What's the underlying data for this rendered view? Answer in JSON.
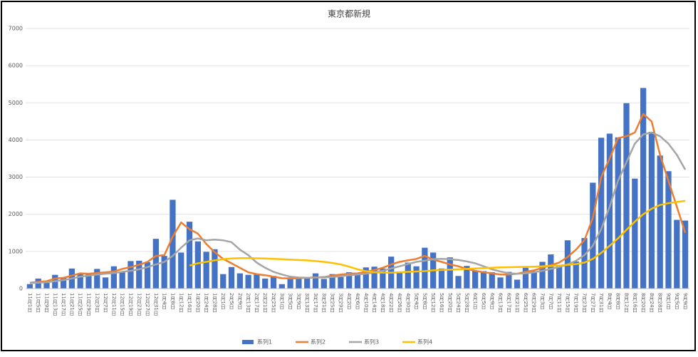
{
  "chart_data": {
    "type": "combo",
    "title": "東京都新規",
    "categories": [
      "11月1日",
      "11月5日",
      "11月9日",
      "11月13日",
      "11月17日",
      "11月21日",
      "11月25日",
      "11月29日",
      "12月3日",
      "12月7日",
      "12月11日",
      "12月15日",
      "12月19日",
      "12月23日",
      "12月27日",
      "12月31日",
      "1月4日",
      "1月8日",
      "1月12日",
      "1月16日",
      "1月20日",
      "1月24日",
      "1月28日",
      "2月1日",
      "2月5日",
      "2月9日",
      "2月13日",
      "2月17日",
      "2月21日",
      "2月25日",
      "3月1日",
      "3月5日",
      "3月9日",
      "3月13日",
      "3月17日",
      "3月21日",
      "3月25日",
      "3月29日",
      "4月2日",
      "4月6日",
      "4月10日",
      "4月14日",
      "4月18日",
      "4月22日",
      "4月26日",
      "4月30日",
      "5月4日",
      "5月8日",
      "5月12日",
      "5月16日",
      "5月20日",
      "5月24日",
      "5月28日",
      "6月1日",
      "6月5日",
      "6月9日",
      "6月13日",
      "6月17日",
      "6月21日",
      "6月25日",
      "6月29日",
      "7月3日",
      "7月7日",
      "7月11日",
      "7月15日",
      "7月19日",
      "7月23日",
      "7月27日",
      "7月31日",
      "8月4日",
      "8月8日",
      "8月12日",
      "8月16日",
      "8月20日",
      "8月24日",
      "8月28日",
      "9月1日",
      "9月5日",
      "9月9日"
    ],
    "series": [
      {
        "name": "系列1",
        "kind": "bar",
        "color": "#4472c4",
        "values": [
          120,
          270,
          160,
          370,
          300,
          540,
          400,
          420,
          530,
          300,
          600,
          460,
          740,
          750,
          710,
          1340,
          880,
          2390,
          970,
          1800,
          1270,
          990,
          1060,
          390,
          580,
          410,
          370,
          380,
          270,
          340,
          120,
          300,
          290,
          310,
          410,
          260,
          390,
          310,
          440,
          400,
          570,
          590,
          540,
          860,
          420,
          700,
          600,
          1100,
          970,
          540,
          840,
          340,
          610,
          470,
          470,
          440,
          300,
          450,
          240,
          560,
          470,
          720,
          920,
          610,
          1300,
          730,
          1360,
          2850,
          4060,
          4170,
          4070,
          4990,
          2960,
          5400,
          4220,
          3580,
          3160,
          1850,
          1830
        ]
      },
      {
        "name": "系列2",
        "kind": "line",
        "color": "#ed7d31",
        "values": [
          160,
          180,
          200,
          270,
          290,
          350,
          410,
          400,
          420,
          440,
          460,
          530,
          580,
          640,
          720,
          880,
          900,
          1400,
          1780,
          1600,
          1480,
          1200,
          980,
          800,
          680,
          560,
          440,
          390,
          360,
          320,
          280,
          270,
          280,
          290,
          300,
          310,
          350,
          380,
          400,
          410,
          450,
          500,
          560,
          650,
          720,
          760,
          800,
          880,
          780,
          720,
          650,
          600,
          530,
          480,
          440,
          410,
          380,
          380,
          400,
          450,
          490,
          560,
          630,
          700,
          850,
          1050,
          1300,
          1900,
          3000,
          3500,
          4050,
          4100,
          4200,
          4700,
          4500,
          3600,
          2900,
          2200,
          1500
        ]
      },
      {
        "name": "系列3",
        "kind": "line",
        "color": "#a5a5a5",
        "values": [
          150,
          160,
          170,
          200,
          230,
          270,
          320,
          350,
          380,
          400,
          420,
          450,
          480,
          520,
          580,
          650,
          720,
          880,
          1100,
          1300,
          1350,
          1300,
          1320,
          1300,
          1250,
          1050,
          900,
          700,
          560,
          450,
          380,
          320,
          300,
          290,
          300,
          300,
          310,
          330,
          360,
          380,
          400,
          440,
          480,
          540,
          600,
          660,
          720,
          750,
          790,
          800,
          790,
          770,
          730,
          680,
          600,
          520,
          460,
          410,
          400,
          410,
          440,
          480,
          530,
          580,
          650,
          750,
          900,
          1150,
          1600,
          2200,
          2900,
          3400,
          3900,
          4150,
          4200,
          4100,
          3900,
          3600,
          3200
        ]
      },
      {
        "name": "系列4",
        "kind": "line",
        "color": "#ffc000",
        "values": [
          null,
          null,
          null,
          null,
          null,
          null,
          null,
          null,
          null,
          null,
          null,
          null,
          null,
          null,
          null,
          null,
          null,
          null,
          null,
          620,
          680,
          720,
          760,
          790,
          810,
          820,
          820,
          815,
          810,
          800,
          790,
          780,
          770,
          760,
          740,
          720,
          690,
          650,
          590,
          520,
          470,
          440,
          430,
          430,
          440,
          450,
          460,
          470,
          490,
          500,
          510,
          520,
          530,
          540,
          550,
          560,
          570,
          575,
          580,
          585,
          590,
          600,
          610,
          620,
          640,
          660,
          700,
          800,
          960,
          1150,
          1350,
          1580,
          1800,
          2000,
          2150,
          2250,
          2300,
          2330,
          2360
        ]
      }
    ],
    "ylim": [
      0,
      7000
    ],
    "yticks": [
      0,
      1000,
      2000,
      3000,
      4000,
      5000,
      6000,
      7000
    ],
    "grid": true,
    "legend": "bottom"
  }
}
